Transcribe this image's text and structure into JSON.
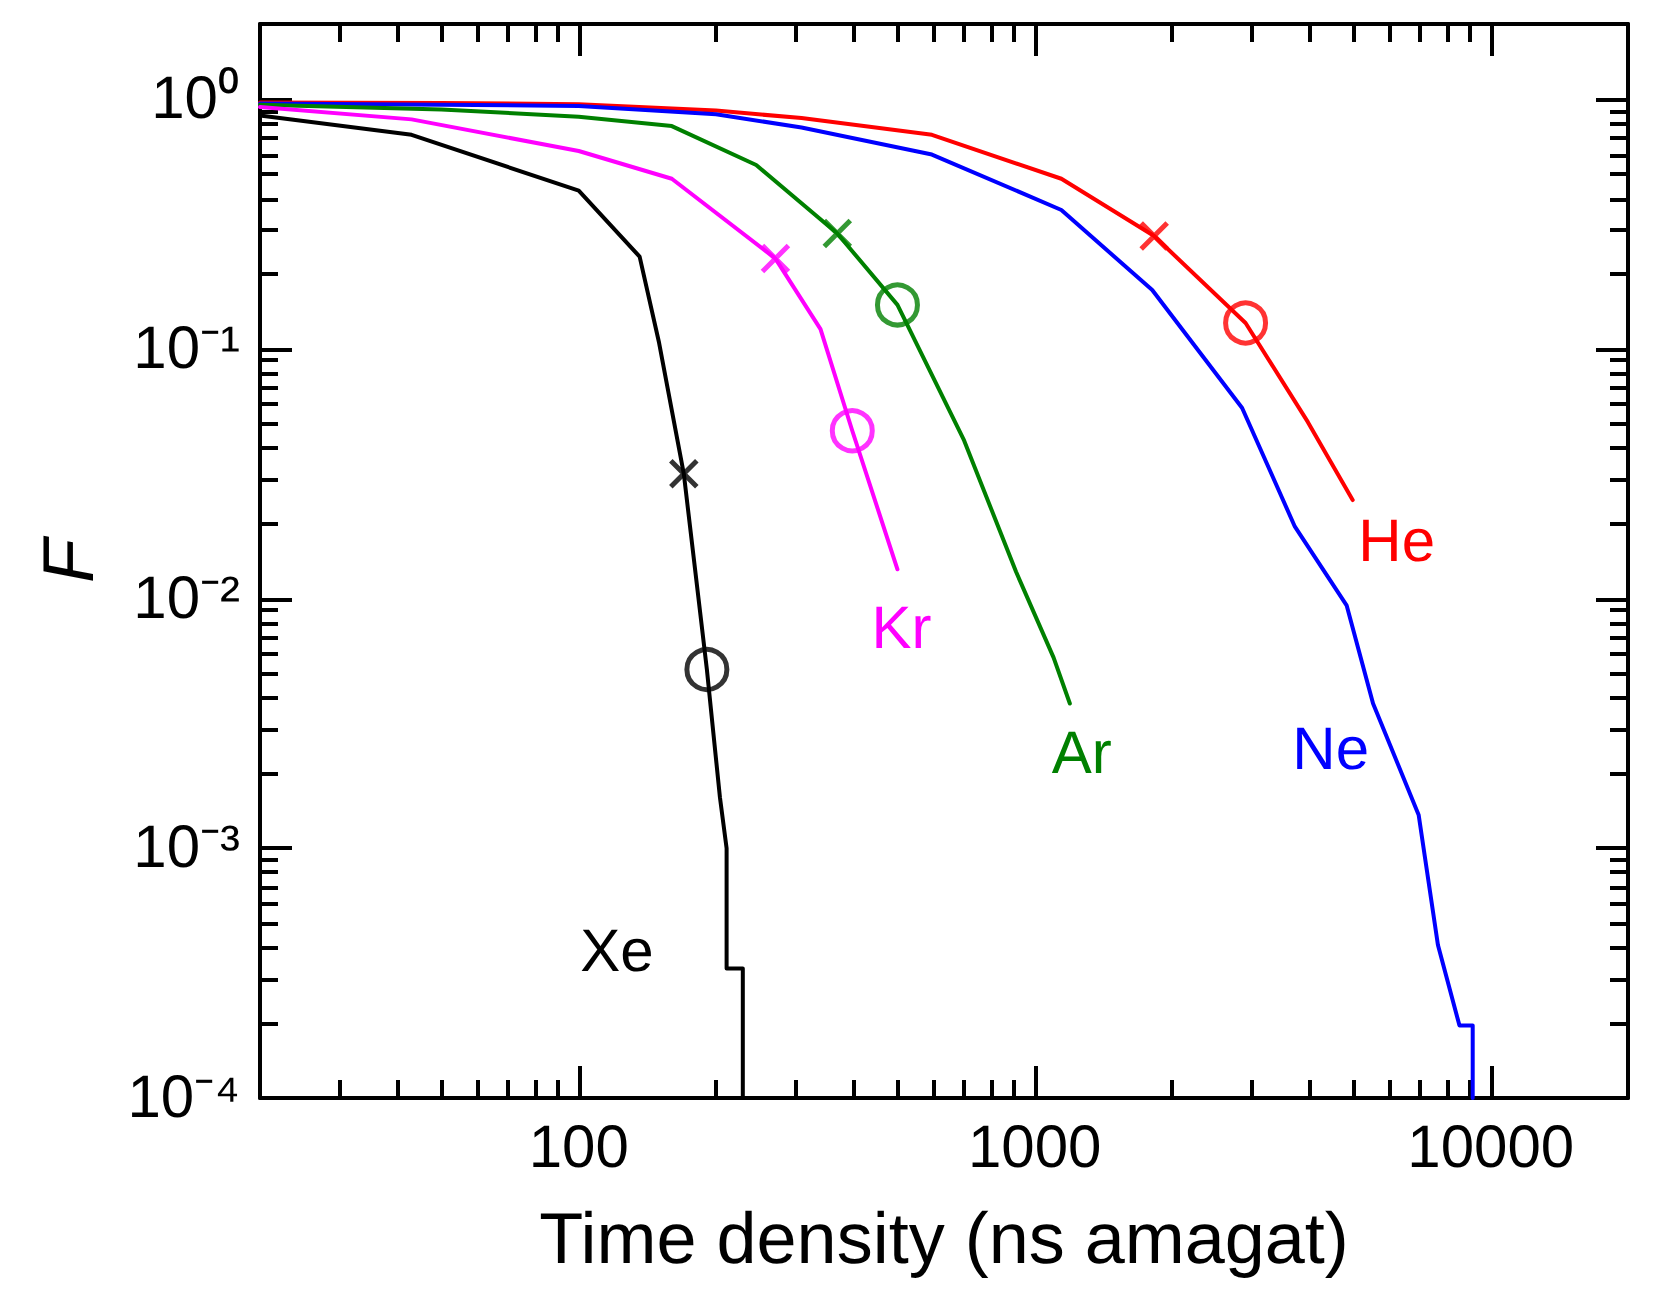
{
  "chart_data": {
    "type": "line",
    "xlabel": "Time density (ns amagat)",
    "ylabel": "F",
    "log": "xy",
    "grid": false,
    "legend": false,
    "xlim": [
      20,
      20000
    ],
    "ylim": [
      0.0001,
      2
    ],
    "xticks": [
      {
        "value": 20,
        "label": null
      },
      {
        "value": 30,
        "label": null
      },
      {
        "value": 40,
        "label": null
      },
      {
        "value": 50,
        "label": null
      },
      {
        "value": 60,
        "label": null
      },
      {
        "value": 70,
        "label": null
      },
      {
        "value": 80,
        "label": null
      },
      {
        "value": 90,
        "label": null
      },
      100,
      {
        "value": 200,
        "label": null
      },
      {
        "value": 300,
        "label": null
      },
      {
        "value": 400,
        "label": null
      },
      {
        "value": 500,
        "label": null
      },
      {
        "value": 600,
        "label": null
      },
      {
        "value": 700,
        "label": null
      },
      {
        "value": 800,
        "label": null
      },
      {
        "value": 900,
        "label": null
      },
      1000,
      {
        "value": 2000,
        "label": null
      },
      {
        "value": 3000,
        "label": null
      },
      {
        "value": 4000,
        "label": null
      },
      {
        "value": 5000,
        "label": null
      },
      {
        "value": 6000,
        "label": null
      },
      {
        "value": 7000,
        "label": null
      },
      {
        "value": 8000,
        "label": null
      },
      {
        "value": 9000,
        "label": null
      },
      10000
    ],
    "yticks": [
      {
        "value": 0.0001,
        "label": "10⁻⁴"
      },
      {
        "value": 0.0002,
        "label": null
      },
      {
        "value": 0.0003,
        "label": null
      },
      {
        "value": 0.0004,
        "label": null
      },
      {
        "value": 0.0005,
        "label": null
      },
      {
        "value": 0.0006,
        "label": null
      },
      {
        "value": 0.0007,
        "label": null
      },
      {
        "value": 0.0008,
        "label": null
      },
      {
        "value": 0.0009,
        "label": null
      },
      {
        "value": 0.001,
        "label": "10⁻³"
      },
      {
        "value": 0.002,
        "label": null
      },
      {
        "value": 0.003,
        "label": null
      },
      {
        "value": 0.004,
        "label": null
      },
      {
        "value": 0.005,
        "label": null
      },
      {
        "value": 0.006,
        "label": null
      },
      {
        "value": 0.007,
        "label": null
      },
      {
        "value": 0.008,
        "label": null
      },
      {
        "value": 0.009,
        "label": null
      },
      {
        "value": 0.01,
        "label": "10⁻²"
      },
      {
        "value": 0.02,
        "label": null
      },
      {
        "value": 0.03,
        "label": null
      },
      {
        "value": 0.04,
        "label": null
      },
      {
        "value": 0.05,
        "label": null
      },
      {
        "value": 0.06,
        "label": null
      },
      {
        "value": 0.07,
        "label": null
      },
      {
        "value": 0.08,
        "label": null
      },
      {
        "value": 0.09,
        "label": null
      },
      {
        "value": 0.1,
        "label": "10⁻¹"
      },
      {
        "value": 0.2,
        "label": null
      },
      {
        "value": 0.3,
        "label": null
      },
      {
        "value": 0.4,
        "label": null
      },
      {
        "value": 0.5,
        "label": null
      },
      {
        "value": 0.6,
        "label": null
      },
      {
        "value": 0.7,
        "label": null
      },
      {
        "value": 0.8,
        "label": null
      },
      {
        "value": 0.9,
        "label": null
      },
      {
        "value": 1,
        "label": "10⁰"
      }
    ],
    "series": [
      {
        "name": "He",
        "color": "#ff0000",
        "marker": "none",
        "line_style": "solid",
        "x": [
          20,
          50,
          100,
          200,
          308,
          595,
          1144,
          1828,
          2900,
          3970,
          4980
        ],
        "values": [
          0.97,
          0.965,
          0.955,
          0.9,
          0.84,
          0.72,
          0.48,
          0.283,
          0.127,
          0.051,
          0.0248
        ]
      },
      {
        "name": "Ne",
        "color": "#0000ff",
        "marker": "none",
        "line_style": "solid",
        "x": [
          20,
          50,
          100,
          200,
          308,
          595,
          1144,
          1810,
          2850,
          3720,
          4830,
          5520,
          6950,
          7660,
          8540,
          9130,
          9130
        ],
        "values": [
          0.96,
          0.95,
          0.94,
          0.87,
          0.77,
          0.6,
          0.36,
          0.172,
          0.058,
          0.0194,
          0.0094,
          0.0038,
          0.00136,
          0.00041,
          0.000195,
          0.000195,
          0.0001
        ]
      },
      {
        "name": "Ar",
        "color": "#008000",
        "marker": "none",
        "line_style": "solid",
        "x": [
          20,
          50,
          100,
          160,
          245,
          369,
          500,
          700,
          910,
          1100,
          1194
        ],
        "values": [
          0.95,
          0.91,
          0.85,
          0.78,
          0.545,
          0.29,
          0.15,
          0.043,
          0.0128,
          0.0058,
          0.0038
        ]
      },
      {
        "name": "Kr",
        "color": "#ff00ff",
        "marker": "none",
        "line_style": "solid",
        "x": [
          20,
          43,
          100,
          160,
          270,
          339,
          398,
          500
        ],
        "values": [
          0.93,
          0.83,
          0.62,
          0.48,
          0.23,
          0.12,
          0.047,
          0.0131
        ]
      },
      {
        "name": "Xe",
        "color": "#000000",
        "marker": "none",
        "line_style": "solid",
        "x": [
          20,
          43,
          100,
          136,
          150,
          170,
          191,
          204,
          211,
          211,
          229,
          229
        ],
        "values": [
          0.86,
          0.72,
          0.43,
          0.234,
          0.106,
          0.0316,
          0.0052,
          0.0016,
          0.001,
          0.00033,
          0.00033,
          0.0001
        ]
      },
      {
        "type": "scatter",
        "marker": "cross",
        "colors": [
          "#ff0000",
          "#008000",
          "#ff00ff",
          "#000000"
        ],
        "x": [
          1828,
          369,
          270,
          170
        ],
        "values": [
          0.283,
          0.29,
          0.23,
          0.0316
        ]
      },
      {
        "type": "scatter",
        "marker": "circle",
        "colors": [
          "#ff0000",
          "#008000",
          "#ff00ff",
          "#000000"
        ],
        "x": [
          2900,
          500,
          398,
          191
        ],
        "values": [
          0.127,
          0.15,
          0.047,
          0.0052
        ]
      }
    ]
  }
}
